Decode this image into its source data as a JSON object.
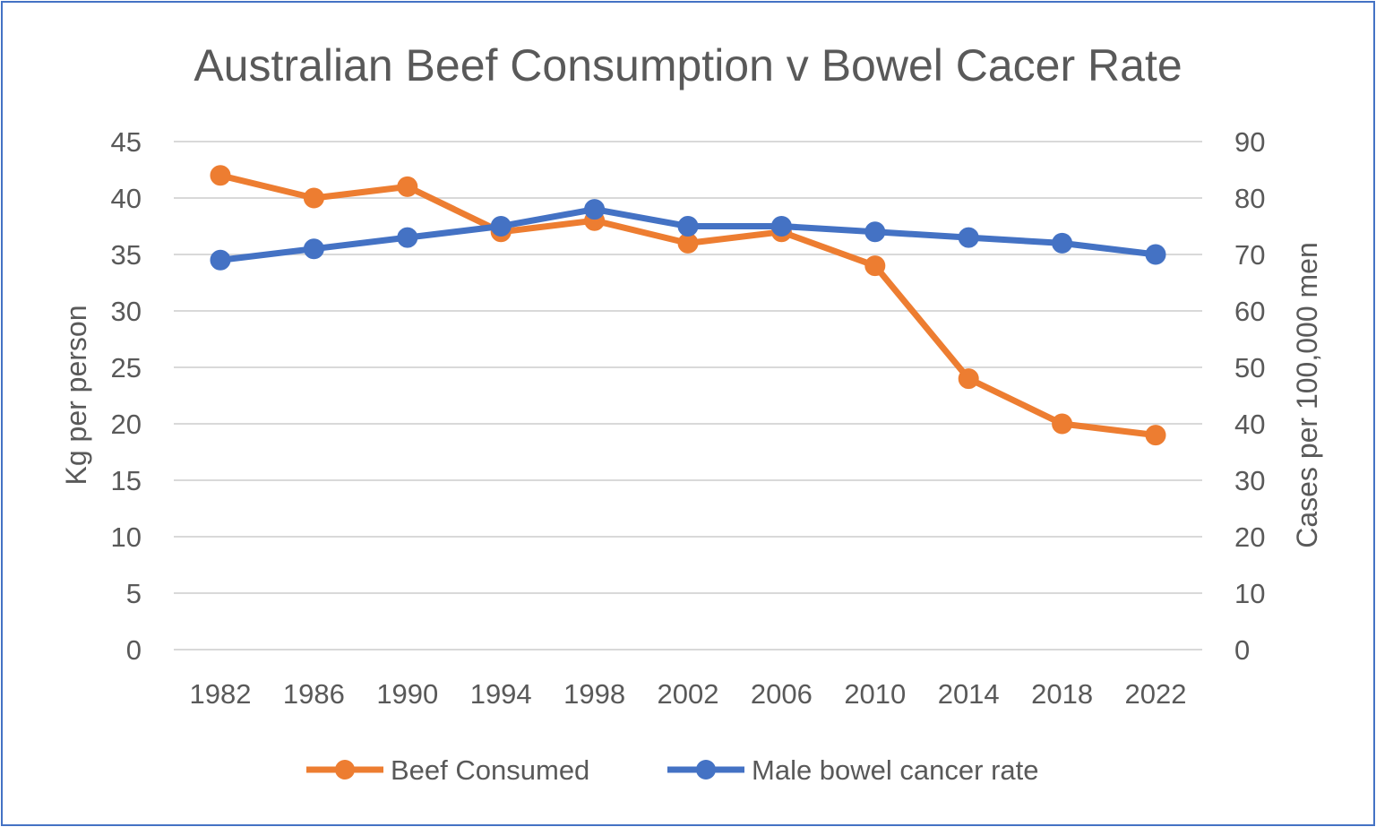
{
  "chart_data": {
    "type": "line",
    "title": "Australian Beef Consumption v Bowel Cacer Rate",
    "categories": [
      "1982",
      "1986",
      "1990",
      "1994",
      "1998",
      "2002",
      "2006",
      "2010",
      "2014",
      "2018",
      "2022"
    ],
    "ylabel": "Kg per person",
    "y2label": "Cases per 100,000 men",
    "ylim": [
      0,
      45
    ],
    "y2lim": [
      0,
      90
    ],
    "y_ticks": [
      "0",
      "5",
      "10",
      "15",
      "20",
      "25",
      "30",
      "35",
      "40",
      "45"
    ],
    "y2_ticks": [
      "0",
      "10",
      "20",
      "30",
      "40",
      "50",
      "60",
      "70",
      "80",
      "90"
    ],
    "grid": true,
    "legend_position": "bottom",
    "series": [
      {
        "name": "Beef Consumed",
        "axis": "left",
        "color": "#ed7d31",
        "values": [
          42,
          40,
          41,
          37,
          38,
          36,
          37,
          34,
          24,
          20,
          19
        ]
      },
      {
        "name": "Male bowel cancer rate",
        "axis": "right",
        "color": "#4472c4",
        "values": [
          69,
          71,
          73,
          75,
          78,
          75,
          75,
          74,
          73,
          72,
          70
        ]
      }
    ]
  }
}
